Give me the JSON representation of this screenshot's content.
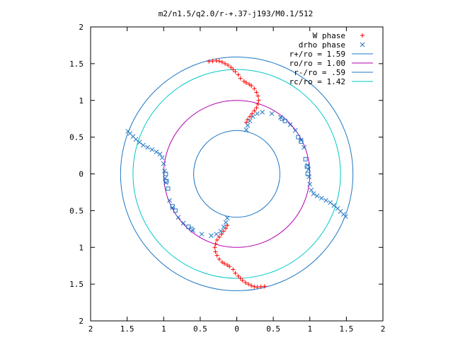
{
  "chart_data": {
    "type": "scatter",
    "title": "m2/n1.5/q2.0/r-+.37-j193/M0.1/512",
    "xlabel": "",
    "ylabel": "",
    "xlim": [
      -2,
      2
    ],
    "ylim": [
      -2,
      2
    ],
    "x_ticks": [
      {
        "value": -2,
        "label": "2"
      },
      {
        "value": -1.5,
        "label": "1.5"
      },
      {
        "value": -1,
        "label": "1"
      },
      {
        "value": -0.5,
        "label": "0.5"
      },
      {
        "value": 0,
        "label": "0"
      },
      {
        "value": 0.5,
        "label": "0.5"
      },
      {
        "value": 1,
        "label": "1"
      },
      {
        "value": 1.5,
        "label": "1.5"
      },
      {
        "value": 2,
        "label": "2"
      }
    ],
    "y_ticks": [
      {
        "value": 2,
        "label": "2"
      },
      {
        "value": 1.5,
        "label": "1.5"
      },
      {
        "value": 1,
        "label": "1"
      },
      {
        "value": 0.5,
        "label": "0.5"
      },
      {
        "value": 0,
        "label": "0"
      },
      {
        "value": -0.5,
        "label": "0.5"
      },
      {
        "value": -1,
        "label": "1"
      },
      {
        "value": -1.5,
        "label": "1.5"
      },
      {
        "value": -2,
        "label": "2"
      }
    ],
    "grid": false,
    "legend_position": "top-right",
    "circles": [
      {
        "name": "r+/ro = 1.59",
        "radius": 1.59,
        "color": "#1f77c4"
      },
      {
        "name": "ro/ro = 1.00",
        "radius": 1.0,
        "color": "#b000b0"
      },
      {
        "name": "r-/ro = .59",
        "radius": 0.59,
        "color": "#1f77c4"
      },
      {
        "name": "rc/ro = 1.42",
        "radius": 1.42,
        "color": "#00c8c8"
      }
    ],
    "series": [
      {
        "name": "W phase",
        "marker": "+",
        "color": "#ff0000",
        "points": [
          [
            -0.38,
            1.53
          ],
          [
            -0.33,
            1.535
          ],
          [
            -0.28,
            1.54
          ],
          [
            -0.24,
            1.535
          ],
          [
            -0.2,
            1.52
          ],
          [
            -0.16,
            1.5
          ],
          [
            -0.12,
            1.48
          ],
          [
            -0.08,
            1.45
          ],
          [
            -0.05,
            1.42
          ],
          [
            -0.02,
            1.39
          ],
          [
            0.02,
            1.35
          ],
          [
            0.05,
            1.3
          ],
          [
            0.1,
            1.26
          ],
          [
            0.13,
            1.24
          ],
          [
            0.17,
            1.22
          ],
          [
            0.2,
            1.2
          ],
          [
            0.24,
            1.16
          ],
          [
            0.27,
            1.11
          ],
          [
            0.29,
            1.06
          ],
          [
            0.3,
            1.0
          ],
          [
            0.29,
            0.95
          ],
          [
            0.27,
            0.9
          ],
          [
            0.24,
            0.86
          ],
          [
            0.21,
            0.82
          ],
          [
            0.18,
            0.78
          ],
          [
            0.15,
            0.74
          ],
          [
            0.13,
            0.7
          ],
          [
            0.38,
            -1.53
          ],
          [
            0.33,
            -1.535
          ],
          [
            0.28,
            -1.54
          ],
          [
            0.24,
            -1.535
          ],
          [
            0.2,
            -1.52
          ],
          [
            0.16,
            -1.5
          ],
          [
            0.12,
            -1.48
          ],
          [
            0.08,
            -1.45
          ],
          [
            0.05,
            -1.42
          ],
          [
            0.02,
            -1.39
          ],
          [
            -0.02,
            -1.35
          ],
          [
            -0.05,
            -1.3
          ],
          [
            -0.1,
            -1.26
          ],
          [
            -0.13,
            -1.24
          ],
          [
            -0.17,
            -1.22
          ],
          [
            -0.2,
            -1.2
          ],
          [
            -0.24,
            -1.16
          ],
          [
            -0.27,
            -1.11
          ],
          [
            -0.29,
            -1.06
          ],
          [
            -0.3,
            -1.0
          ],
          [
            -0.29,
            -0.95
          ],
          [
            -0.27,
            -0.9
          ],
          [
            -0.24,
            -0.86
          ],
          [
            -0.21,
            -0.82
          ],
          [
            -0.18,
            -0.78
          ],
          [
            -0.15,
            -0.74
          ],
          [
            -0.13,
            -0.7
          ]
        ]
      },
      {
        "name": "drho phase",
        "marker": "x",
        "color": "#1f77c4",
        "points": [
          [
            -1.49,
            0.58
          ],
          [
            -1.46,
            0.55
          ],
          [
            -1.42,
            0.51
          ],
          [
            -1.38,
            0.47
          ],
          [
            -1.33,
            0.43
          ],
          [
            -1.28,
            0.39
          ],
          [
            -1.22,
            0.36
          ],
          [
            -1.16,
            0.33
          ],
          [
            -1.1,
            0.3
          ],
          [
            -1.05,
            0.27
          ],
          [
            -1.02,
            0.22
          ],
          [
            -1.0,
            0.14
          ],
          [
            -0.99,
            0.04
          ],
          [
            -0.98,
            -0.06
          ],
          [
            -0.97,
            -0.12
          ],
          [
            -0.92,
            -0.36
          ],
          [
            -0.88,
            -0.46
          ],
          [
            -0.8,
            -0.59
          ],
          [
            -0.73,
            -0.67
          ],
          [
            -0.6,
            -0.77
          ],
          [
            -0.48,
            -0.82
          ],
          [
            -0.35,
            -0.84
          ],
          [
            -0.28,
            -0.82
          ],
          [
            -0.22,
            -0.78
          ],
          [
            -0.18,
            -0.72
          ],
          [
            -0.15,
            -0.66
          ],
          [
            -0.13,
            -0.6
          ],
          [
            1.49,
            -0.58
          ],
          [
            1.46,
            -0.55
          ],
          [
            1.42,
            -0.51
          ],
          [
            1.38,
            -0.47
          ],
          [
            1.33,
            -0.43
          ],
          [
            1.28,
            -0.39
          ],
          [
            1.22,
            -0.36
          ],
          [
            1.16,
            -0.33
          ],
          [
            1.1,
            -0.3
          ],
          [
            1.05,
            -0.27
          ],
          [
            1.02,
            -0.22
          ],
          [
            1.0,
            -0.14
          ],
          [
            0.99,
            -0.04
          ],
          [
            0.98,
            0.06
          ],
          [
            0.97,
            0.12
          ],
          [
            0.92,
            0.36
          ],
          [
            0.88,
            0.46
          ],
          [
            0.8,
            0.59
          ],
          [
            0.73,
            0.67
          ],
          [
            0.6,
            0.77
          ],
          [
            0.48,
            0.82
          ],
          [
            0.35,
            0.84
          ],
          [
            0.28,
            0.82
          ],
          [
            0.22,
            0.78
          ],
          [
            0.18,
            0.72
          ],
          [
            0.15,
            0.66
          ],
          [
            0.13,
            0.6
          ]
        ]
      },
      {
        "name": "",
        "marker": "square",
        "color": "#1f77c4",
        "points": [
          [
            -0.97,
            0.0
          ],
          [
            -0.96,
            -0.1
          ],
          [
            -0.94,
            -0.2
          ],
          [
            -0.88,
            -0.44
          ],
          [
            -0.84,
            -0.5
          ],
          [
            -0.66,
            -0.72
          ],
          [
            -0.62,
            -0.75
          ],
          [
            0.97,
            0.0
          ],
          [
            0.96,
            0.1
          ],
          [
            0.94,
            0.2
          ],
          [
            0.88,
            0.44
          ],
          [
            0.84,
            0.5
          ],
          [
            0.66,
            0.72
          ],
          [
            0.62,
            0.75
          ]
        ]
      }
    ]
  }
}
